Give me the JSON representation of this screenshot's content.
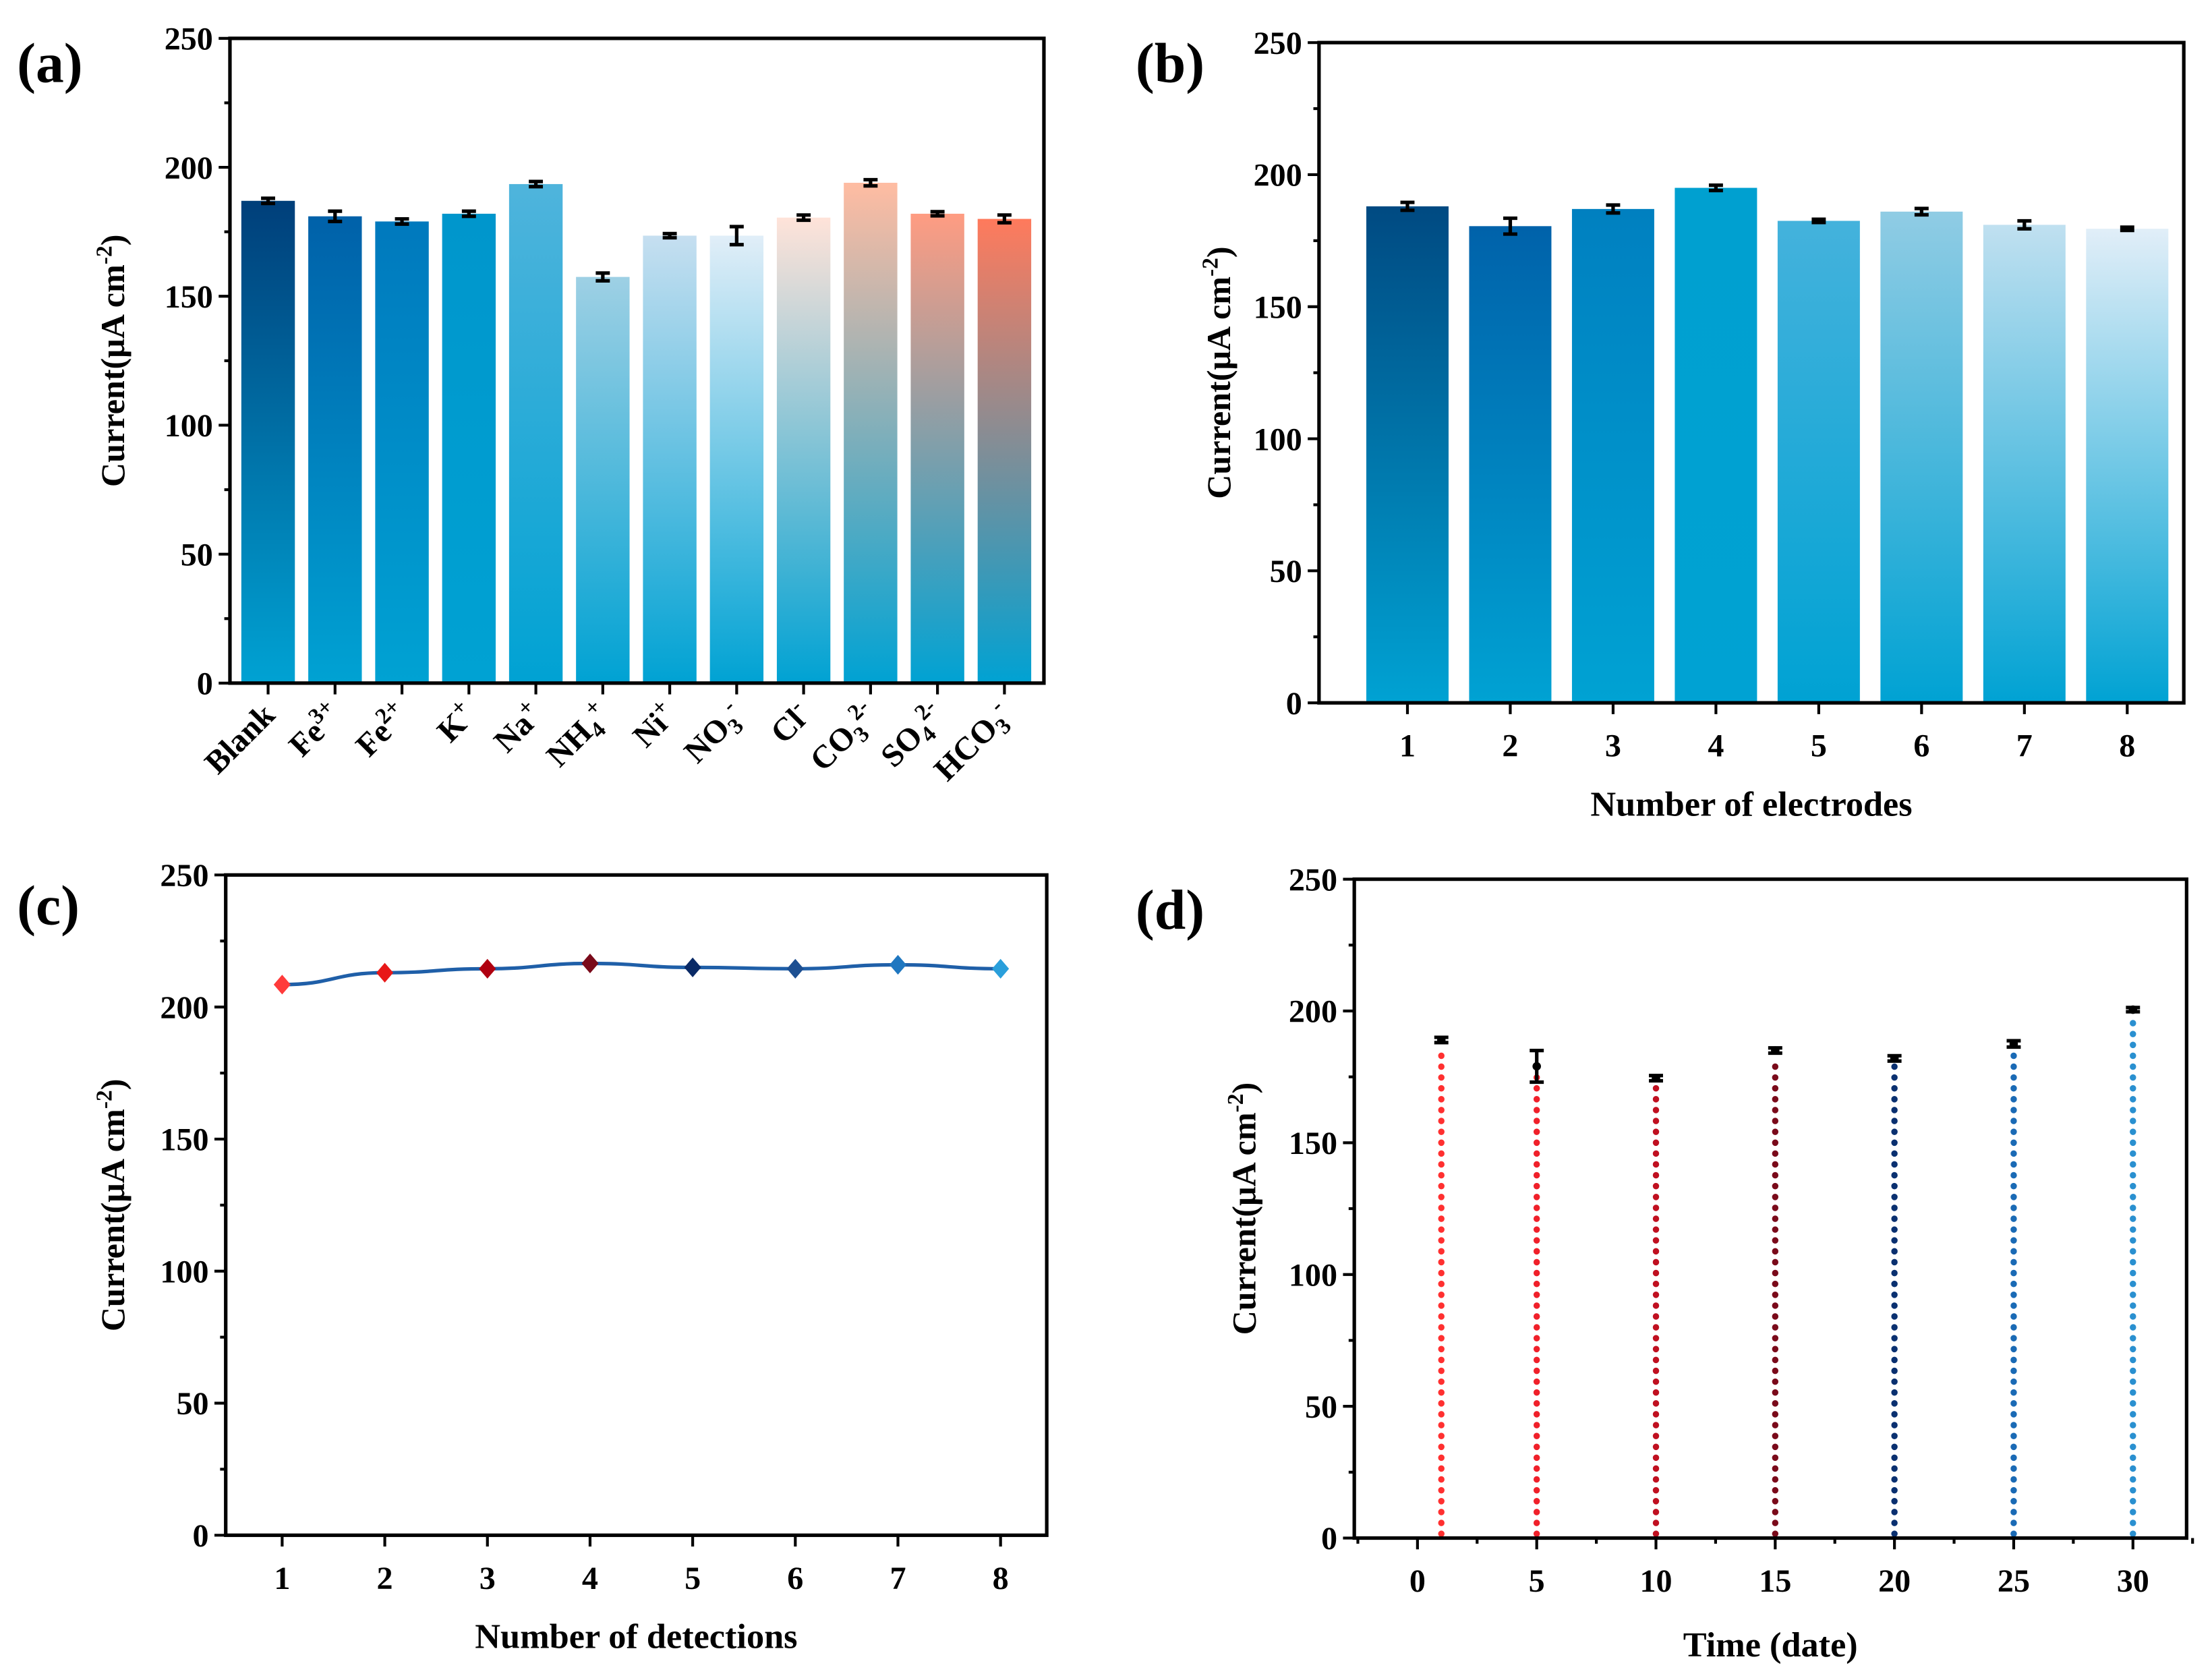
{
  "y_axis_label": {
    "text": "Current(μA cm",
    "sup": "-2",
    "close": ")"
  },
  "chart_data": [
    {
      "panel": "(a)",
      "type": "bar",
      "categories": [
        {
          "base": "Blank"
        },
        {
          "base": "Fe",
          "sup": "3+"
        },
        {
          "base": "Fe",
          "sup": "2+"
        },
        {
          "base": "K",
          "sup": "+"
        },
        {
          "base": "Na",
          "sup": "+"
        },
        {
          "base": "NH",
          "sub": "4",
          "sup": "+"
        },
        {
          "base": "Ni",
          "sup": "+"
        },
        {
          "base": "NO",
          "sub": "3",
          "sup": "-"
        },
        {
          "base": "Cl",
          "sup": "-"
        },
        {
          "base": "CO",
          "sub": "3",
          "sup": "2-"
        },
        {
          "base": "SO",
          "sub": "4",
          "sup": "2-"
        },
        {
          "base": "HCO",
          "sub": "3",
          "sup": "-"
        }
      ],
      "values": [
        187,
        181,
        179,
        182,
        193.5,
        157.5,
        173.5,
        173.5,
        180.5,
        194,
        182,
        180
      ],
      "errors": [
        1,
        2,
        1,
        1,
        1,
        1.5,
        0.8,
        3.5,
        1,
        1.2,
        0.8,
        1.5
      ],
      "top_colors": [
        "#003F7A",
        "#0061A9",
        "#0079BD",
        "#0096CC",
        "#4FB4DC",
        "#9ED0E4",
        "#C6DFF0",
        "#E1EEF8",
        "#FFE3D9",
        "#FFBCA2",
        "#FF9C82",
        "#FF7A5C"
      ],
      "bottom_color": "#00A2D3",
      "xlabel": "",
      "ylim": [
        0,
        250
      ],
      "yticks": [
        "0",
        "50",
        "100",
        "150",
        "200",
        "250"
      ]
    },
    {
      "panel": "(b)",
      "type": "bar",
      "categories": [
        "1",
        "2",
        "3",
        "4",
        "5",
        "6",
        "7",
        "8"
      ],
      "values": [
        188,
        180.5,
        187,
        195,
        182.5,
        186,
        181,
        179.5
      ],
      "errors": [
        1.5,
        3,
        1.5,
        1,
        0.6,
        1.2,
        1.5,
        0.6
      ],
      "top_colors": [
        "#004A82",
        "#0062AA",
        "#0080C0",
        "#00A0D0",
        "#44B2DC",
        "#90CCE4",
        "#C0E0F0",
        "#E1EEF8"
      ],
      "bottom_color": "#00A2D3",
      "xlabel": "Number of electrodes",
      "ylim": [
        0,
        250
      ],
      "yticks": [
        "0",
        "50",
        "100",
        "150",
        "200",
        "250"
      ]
    },
    {
      "panel": "(c)",
      "type": "line",
      "x": [
        1,
        2,
        3,
        4,
        5,
        6,
        7,
        8
      ],
      "values": [
        208.5,
        213,
        214.5,
        216.5,
        215,
        214.5,
        216,
        214.5
      ],
      "marker_colors": [
        "#FF3B3B",
        "#E81818",
        "#B00010",
        "#7A0A1A",
        "#0A2A66",
        "#1D4F91",
        "#1F77C0",
        "#2A9FDB"
      ],
      "line_color": "#1F5FA8",
      "xticks": [
        "1",
        "2",
        "3",
        "4",
        "5",
        "6",
        "7",
        "8"
      ],
      "xlabel": "Number of detections",
      "ylim": [
        0,
        250
      ],
      "yticks": [
        "0",
        "50",
        "100",
        "150",
        "200",
        "250"
      ]
    },
    {
      "panel": "(d)",
      "type": "scatter",
      "x": [
        1,
        5,
        10,
        15,
        20,
        25,
        30
      ],
      "values": [
        189,
        179,
        174.5,
        185,
        182,
        187.5,
        200.5
      ],
      "errors": [
        1,
        6,
        1,
        1,
        1,
        1.2,
        0.8
      ],
      "drop_colors": [
        "#FF3030",
        "#F0202A",
        "#C01020",
        "#7A0A1A",
        "#0A3070",
        "#1A6AB5",
        "#2A90D0"
      ],
      "xticks": [
        "0",
        "5",
        "10",
        "15",
        "20",
        "25",
        "30"
      ],
      "xlim": [
        -2.65,
        32.25
      ],
      "xlabel": "Time (date)",
      "ylim": [
        0,
        250
      ],
      "yticks": [
        "0",
        "50",
        "100",
        "150",
        "200",
        "250"
      ]
    }
  ]
}
